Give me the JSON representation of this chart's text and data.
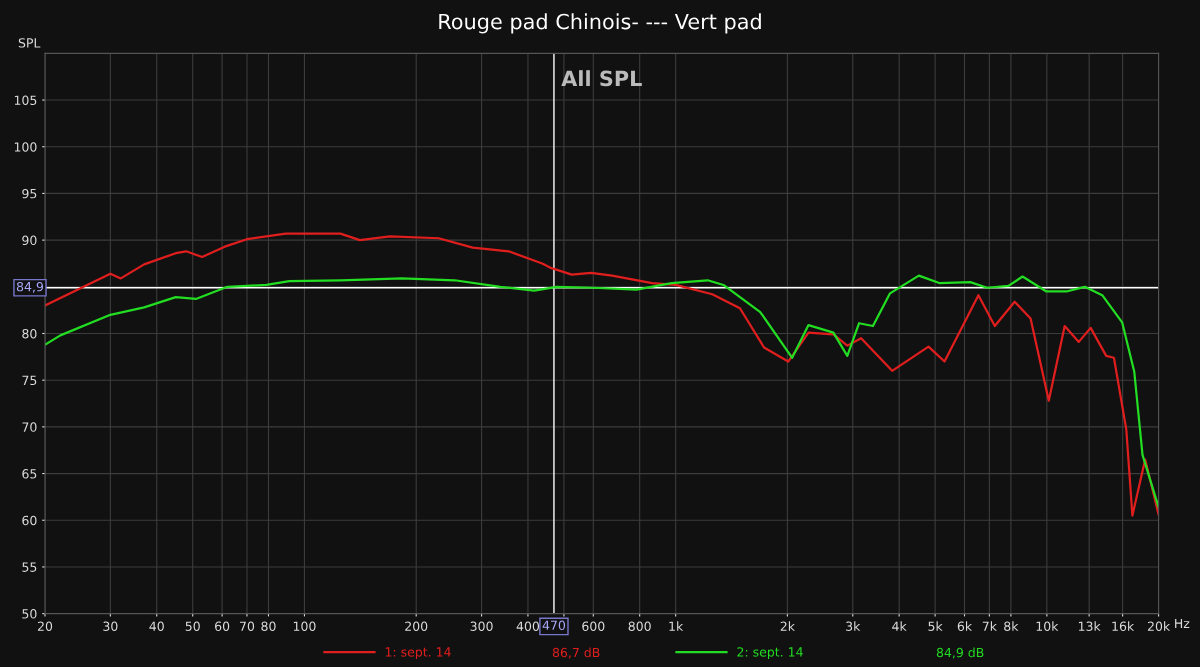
{
  "chart_data": {
    "type": "line",
    "title": "Rouge pad Chinois- --- Vert pad",
    "ylabel": "SPL",
    "annotations": [
      "All SPL",
      "86,7 dB",
      "84,9 dB"
    ],
    "log": "x",
    "grid": true,
    "legend": "bottom",
    "line_style": "solid",
    "xlim": [
      20,
      20000
    ],
    "ylim": [
      50,
      110
    ],
    "xticks": [
      20,
      30,
      40,
      50,
      60,
      70,
      80,
      100,
      200,
      300,
      400,
      {
        "value": 500,
        "label": null
      },
      600,
      800,
      {
        "value": 1000,
        "label": "1k"
      },
      {
        "value": 2000,
        "label": "2k"
      },
      {
        "value": 3000,
        "label": "3k"
      },
      {
        "value": 4000,
        "label": "4k"
      },
      {
        "value": 5000,
        "label": "5k"
      },
      {
        "value": 6000,
        "label": "6k"
      },
      {
        "value": 7000,
        "label": "7k"
      },
      {
        "value": 8000,
        "label": "8k"
      },
      {
        "value": 10000,
        "label": "10k"
      },
      {
        "value": 13000,
        "label": "13k"
      },
      {
        "value": 16000,
        "label": "16k"
      },
      {
        "value": 20000,
        "label": "20k"
      }
    ],
    "xlabel": "Hz",
    "yticks": [
      50,
      55,
      60,
      65,
      70,
      75,
      80,
      {
        "value": 85,
        "label": null
      },
      90,
      95,
      100,
      105
    ],
    "ref_lines": [
      {
        "axis": "y",
        "value": 84.9,
        "label": "84,9",
        "color": "#ffffff"
      },
      {
        "axis": "x",
        "value": 470,
        "label": "470",
        "color": "#ffffff"
      }
    ],
    "series": [
      {
        "name": "1: sept. 14",
        "color": "#e01e1e",
        "x": [
          20,
          30,
          32,
          37,
          45,
          48,
          53,
          61,
          70,
          89,
          125,
          141,
          170,
          230,
          284,
          355,
          437,
          463,
          525,
          592,
          674,
          864,
          1000,
          1255,
          1490,
          1730,
          2010,
          2280,
          2660,
          2900,
          3160,
          3830,
          4800,
          5300,
          6540,
          7240,
          8190,
          9040,
          10120,
          11170,
          12190,
          13120,
          14450,
          15160,
          16370,
          17000,
          18400,
          20000
        ],
        "values": [
          83.0,
          86.4,
          85.9,
          87.4,
          88.6,
          88.8,
          88.2,
          89.3,
          90.1,
          90.7,
          90.7,
          90.0,
          90.4,
          90.2,
          89.2,
          88.8,
          87.5,
          87.0,
          86.3,
          86.5,
          86.2,
          85.4,
          85.2,
          84.2,
          82.7,
          78.5,
          77.0,
          80.1,
          79.9,
          78.7,
          79.5,
          76.0,
          78.6,
          77.0,
          84.1,
          80.8,
          83.4,
          81.6,
          72.8,
          80.8,
          79.1,
          80.6,
          77.6,
          77.4,
          69.7,
          60.5,
          66.5,
          60.6
        ]
      },
      {
        "name": "2: sept. 14",
        "color": "#22dd22",
        "x": [
          20,
          22,
          30,
          37,
          45,
          51,
          62,
          79,
          91,
          125,
          183,
          254,
          337,
          416,
          478,
          600,
          784,
          975,
          1220,
          1345,
          1690,
          2060,
          2280,
          2660,
          2900,
          3120,
          3400,
          3780,
          4520,
          5130,
          6220,
          6900,
          7880,
          8600,
          9970,
          11300,
          12650,
          14100,
          15950,
          17200,
          18100,
          20000
        ],
        "values": [
          78.8,
          79.8,
          82.0,
          82.8,
          83.9,
          83.7,
          85.0,
          85.2,
          85.6,
          85.7,
          85.9,
          85.7,
          85.0,
          84.6,
          85.0,
          84.9,
          84.7,
          85.4,
          85.7,
          85.2,
          82.3,
          77.4,
          80.9,
          80.1,
          77.6,
          81.1,
          80.8,
          84.3,
          86.2,
          85.4,
          85.5,
          84.9,
          85.1,
          86.1,
          84.5,
          84.5,
          85.0,
          84.1,
          81.2,
          75.9,
          67.0,
          61.4
        ]
      }
    ]
  }
}
